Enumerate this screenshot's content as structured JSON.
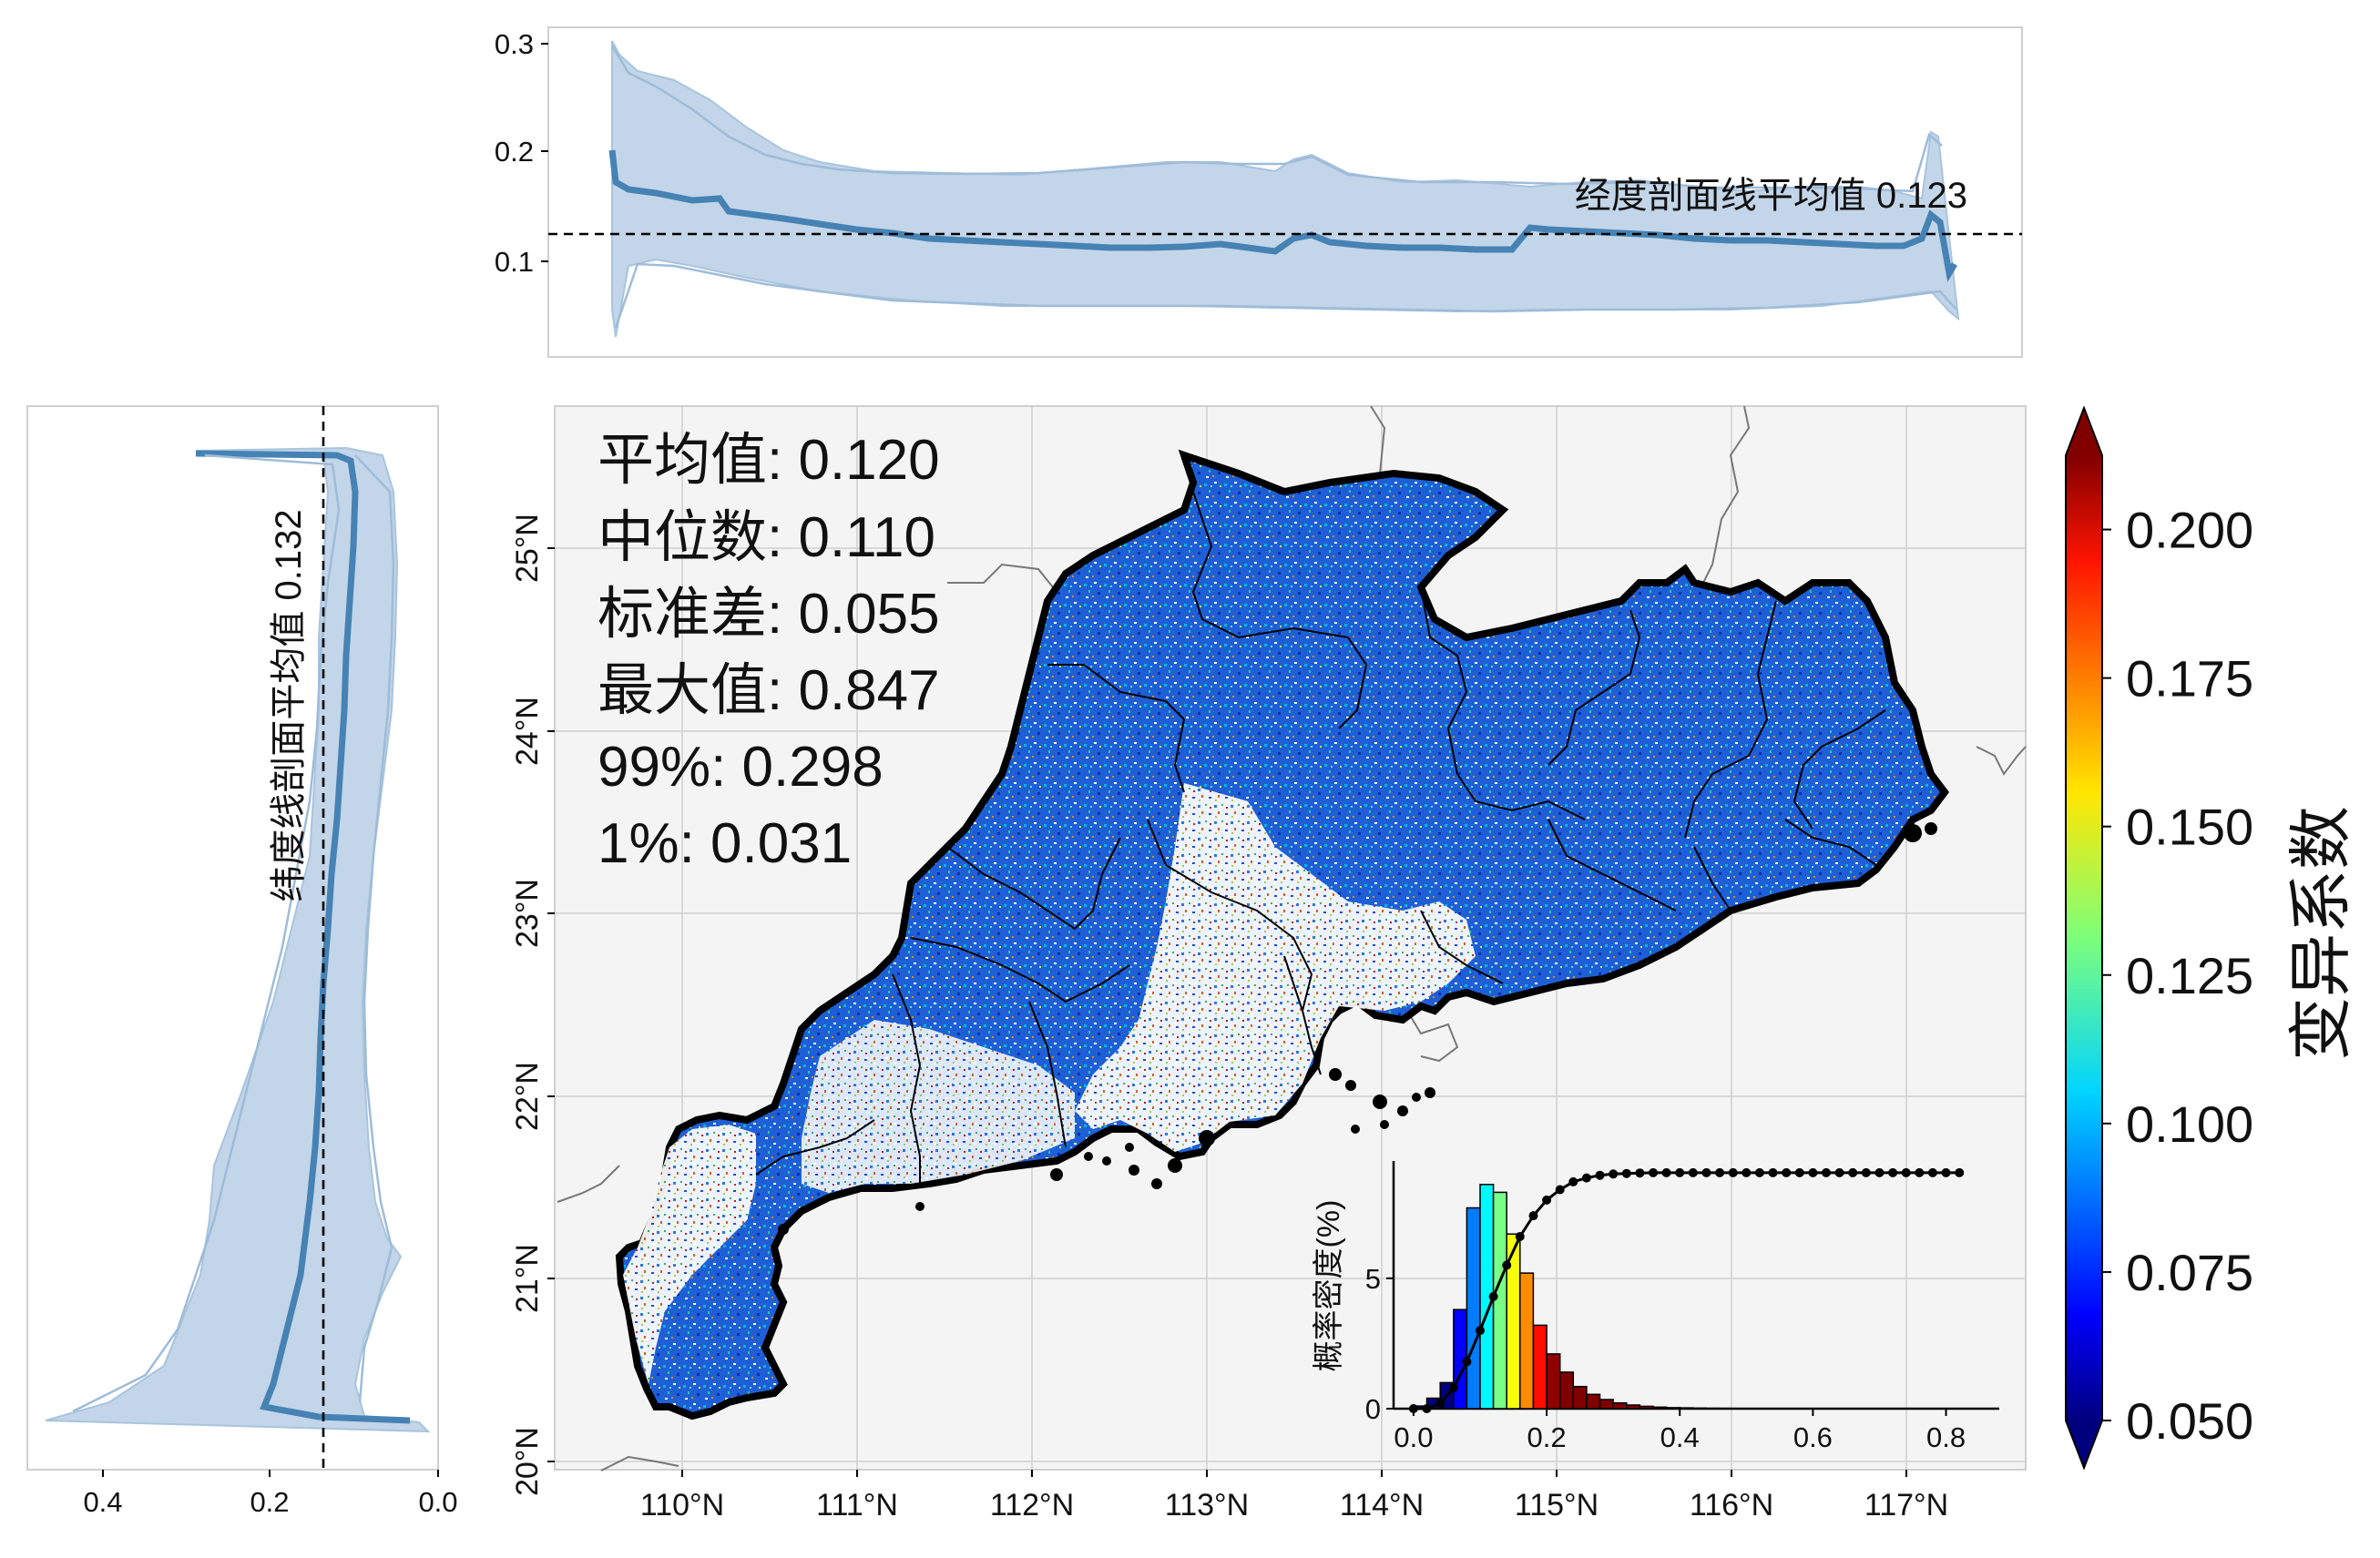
{
  "figure": {
    "stats": [
      "平均值: 0.120",
      "中位数: 0.110",
      "标准差: 0.055",
      "最大值: 0.847",
      "99%: 0.298",
      "1%: 0.031"
    ],
    "colorbar": {
      "label": "变异系数",
      "min": 0.05,
      "max": 0.2125,
      "ticks": [
        "0.050",
        "0.075",
        "0.100",
        "0.125",
        "0.150",
        "0.175",
        "0.200"
      ],
      "colormap": "jet",
      "extend": "both"
    },
    "map": {
      "lon_range": [
        109.3,
        117.65
      ],
      "lat_range": [
        19.95,
        25.8
      ],
      "x_ticks": [
        "110°N",
        "111°N",
        "112°N",
        "113°N",
        "114°N",
        "115°N",
        "116°N",
        "117°N"
      ],
      "y_ticks": [
        "20°N",
        "21°N",
        "22°N",
        "23°N",
        "24°N",
        "25°N"
      ],
      "ocean_color": "#f4f4f4",
      "grid": true
    },
    "top_profile": {
      "annotation": "经度剖面线平均值 0.123",
      "mean": 0.123,
      "ylim": [
        0.01,
        0.31
      ],
      "y_ticks": [
        "0.1",
        "0.2",
        "0.3"
      ],
      "line_color": "#4682b4",
      "band_color": "#c3d5e8"
    },
    "left_profile": {
      "annotation": "纬度线剖面平均值 0.132",
      "mean": 0.132,
      "xlim": [
        0.49,
        0.0
      ],
      "x_ticks": [
        "0.4",
        "0.2",
        "0.0"
      ],
      "line_color": "#4682b4",
      "band_color": "#c3d5e8"
    }
  },
  "chart_data": {
    "type": "bar",
    "ylabel": "概率密度(%)",
    "x_ticks": [
      "0.0",
      "0.2",
      "0.4",
      "0.6",
      "0.8"
    ],
    "y_ticks": [
      "0",
      "5"
    ],
    "xlim": [
      -0.03,
      0.88
    ],
    "ylim": [
      0,
      9.5
    ],
    "bin_width": 0.02,
    "bin_centers": [
      0.01,
      0.03,
      0.05,
      0.07,
      0.09,
      0.11,
      0.13,
      0.15,
      0.17,
      0.19,
      0.21,
      0.23,
      0.25,
      0.27,
      0.29,
      0.31,
      0.33,
      0.35,
      0.37,
      0.39,
      0.41,
      0.43,
      0.45,
      0.47,
      0.49
    ],
    "density_percent": [
      0.1,
      0.4,
      1.0,
      3.8,
      7.7,
      8.6,
      8.3,
      6.7,
      5.2,
      3.2,
      2.1,
      1.4,
      0.85,
      0.55,
      0.35,
      0.22,
      0.14,
      0.09,
      0.06,
      0.04,
      0.03,
      0.02,
      0.015,
      0.01,
      0.008
    ],
    "cumulative": {
      "x": [
        0.0,
        0.02,
        0.04,
        0.06,
        0.08,
        0.1,
        0.12,
        0.14,
        0.16,
        0.18,
        0.2,
        0.22,
        0.24,
        0.26,
        0.28,
        0.3,
        0.32,
        0.34,
        0.36,
        0.38,
        0.4,
        0.42,
        0.44,
        0.46,
        0.48,
        0.5,
        0.52,
        0.54,
        0.56,
        0.58,
        0.6,
        0.62,
        0.64,
        0.66,
        0.68,
        0.7,
        0.72,
        0.74,
        0.76,
        0.78,
        0.8,
        0.82
      ],
      "y": [
        0.0,
        0.0,
        0.2,
        0.8,
        1.8,
        3.0,
        4.3,
        5.5,
        6.6,
        7.4,
        8.0,
        8.4,
        8.7,
        8.85,
        8.95,
        9.0,
        9.02,
        9.04,
        9.05,
        9.05,
        9.05,
        9.05,
        9.05,
        9.05,
        9.05,
        9.05,
        9.05,
        9.05,
        9.05,
        9.05,
        9.05,
        9.05,
        9.05,
        9.05,
        9.05,
        9.05,
        9.05,
        9.05,
        9.05,
        9.05,
        9.05,
        9.05
      ]
    }
  }
}
